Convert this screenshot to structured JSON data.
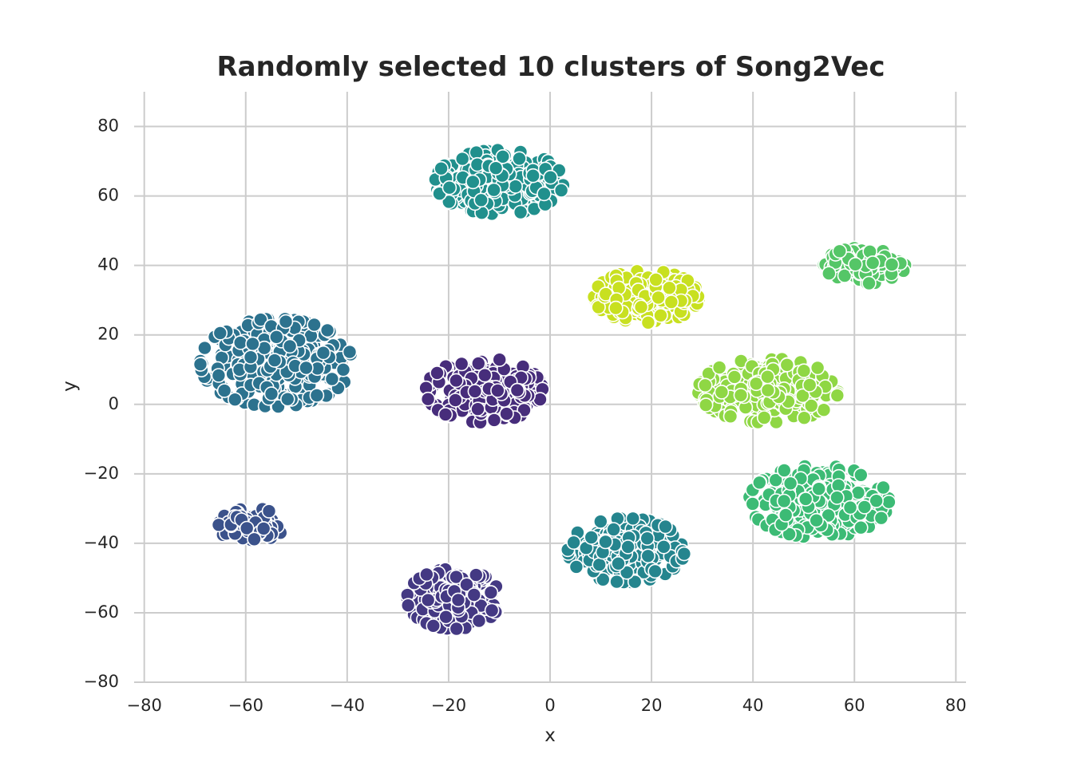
{
  "chart_data": {
    "type": "scatter",
    "title": "Randomly selected 10 clusters of Song2Vec",
    "xlabel": "x",
    "ylabel": "y",
    "xlim": [
      -82,
      82
    ],
    "ylim": [
      -80,
      90
    ],
    "xticks": [
      -80,
      -60,
      -40,
      -20,
      0,
      20,
      40,
      60,
      80
    ],
    "yticks": [
      -80,
      -60,
      -40,
      -20,
      0,
      20,
      40,
      60,
      80
    ],
    "xtick_labels": [
      "−80",
      "−60",
      "−40",
      "−20",
      "0",
      "20",
      "40",
      "60",
      "80"
    ],
    "ytick_labels": [
      "−80",
      "−60",
      "−40",
      "−20",
      "0",
      "20",
      "40",
      "60",
      "80"
    ],
    "grid": true,
    "legend": "none",
    "colors": {
      "teal_top": "#21908d",
      "steel_blue_left": "#2c728e",
      "purple_center": "#472d7b",
      "navy_small": "#3b528b",
      "indigo_bottom": "#443983",
      "teal_bottom_center": "#25858e",
      "yellow_green": "#c8e020",
      "lime_green": "#8fd744",
      "green_right": "#3cbb75",
      "green_top_right": "#55c667"
    },
    "clusters": [
      {
        "color": "#21908d",
        "center": [
          -10,
          64
        ],
        "spread": [
          11,
          8
        ],
        "count": 260
      },
      {
        "color": "#2c728e",
        "center": [
          -54,
          12
        ],
        "spread": [
          13,
          11
        ],
        "count": 340
      },
      {
        "color": "#472d7b",
        "center": [
          -13,
          4
        ],
        "spread": [
          10,
          8
        ],
        "count": 230
      },
      {
        "color": "#3b528b",
        "center": [
          -59,
          -35
        ],
        "spread": [
          5.5,
          4.5
        ],
        "count": 90
      },
      {
        "color": "#443983",
        "center": [
          -19,
          -56
        ],
        "spread": [
          8,
          7.5
        ],
        "count": 200
      },
      {
        "color": "#25858e",
        "center": [
          15,
          -42
        ],
        "spread": [
          10,
          8
        ],
        "count": 230
      },
      {
        "color": "#c8e020",
        "center": [
          19,
          31
        ],
        "spread": [
          9,
          6.5
        ],
        "count": 180
      },
      {
        "color": "#8fd744",
        "center": [
          43,
          4
        ],
        "spread": [
          12,
          8
        ],
        "count": 260
      },
      {
        "color": "#3cbb75",
        "center": [
          53,
          -28
        ],
        "spread": [
          12,
          9
        ],
        "count": 280
      },
      {
        "color": "#55c667",
        "center": [
          62,
          40
        ],
        "spread": [
          7,
          4.5
        ],
        "count": 110
      }
    ]
  }
}
